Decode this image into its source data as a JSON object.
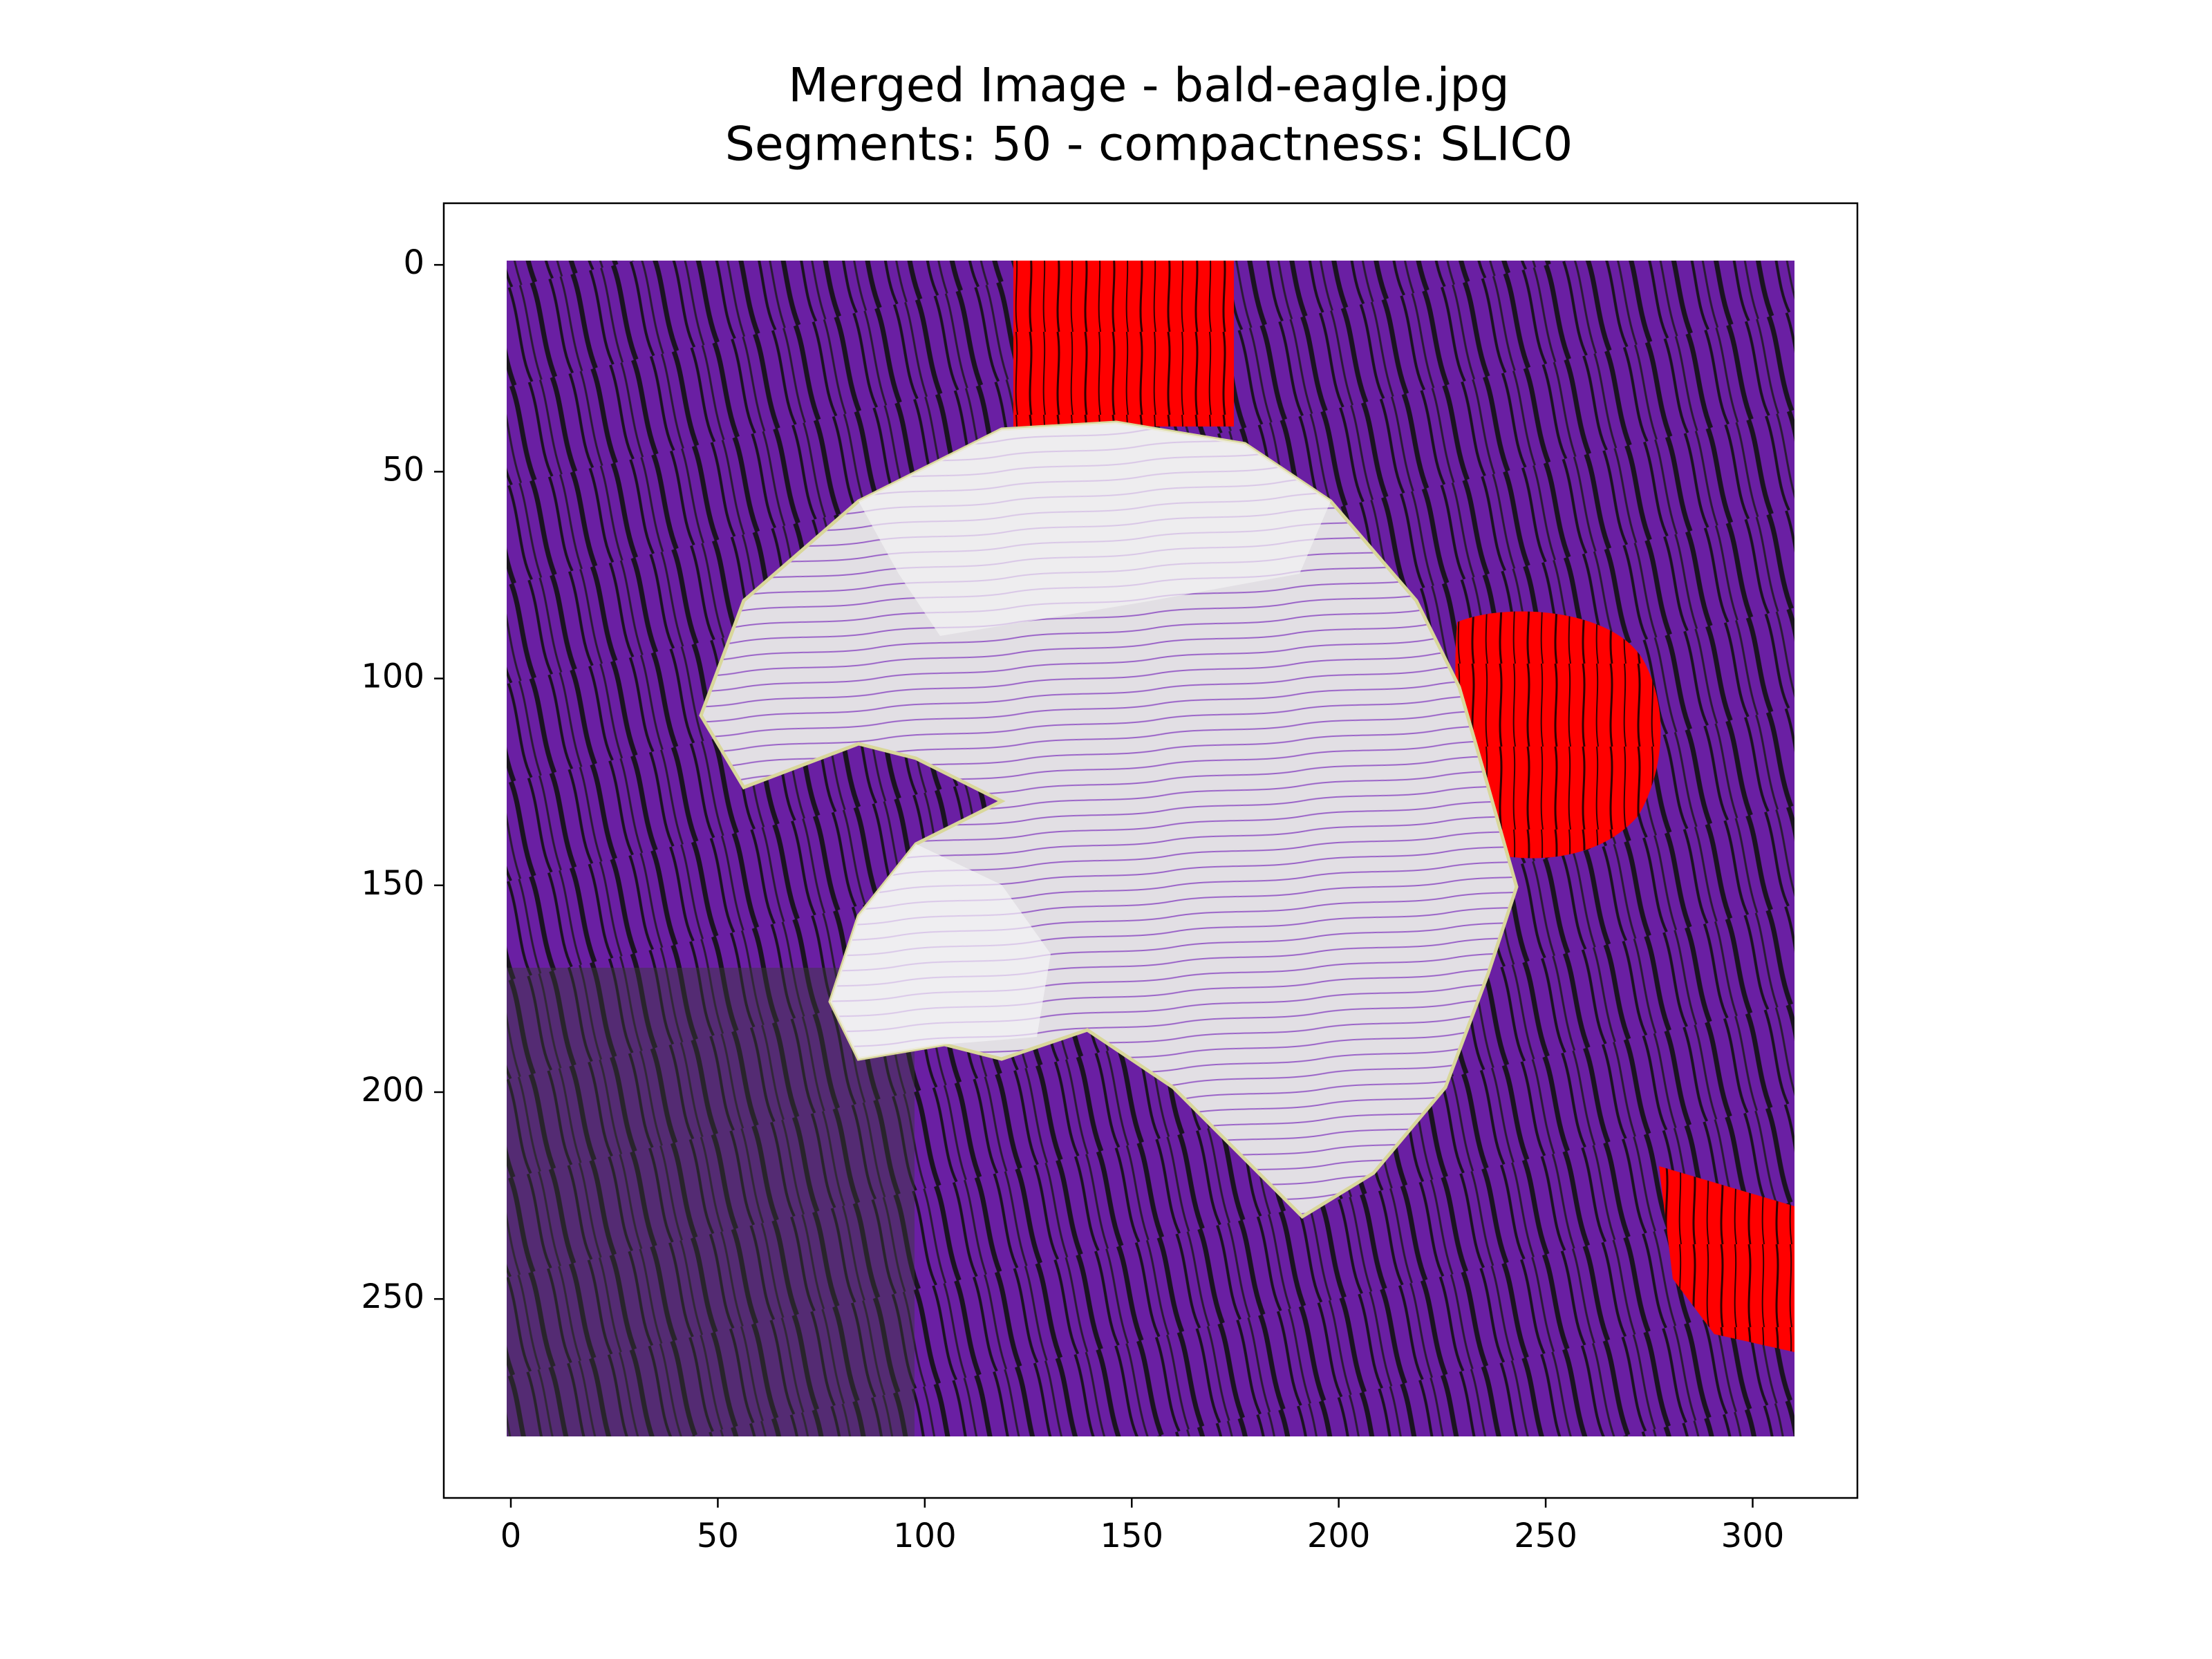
{
  "chart_data": {
    "type": "image",
    "title": "Merged Image - bald-eagle.jpg",
    "subtitle": "Segments: 50 - compactness: SLIC0",
    "xlim": [
      -16.2,
      325.3
    ],
    "xticks": [
      0,
      50,
      100,
      150,
      200,
      250,
      300
    ],
    "ylim": [
      298.1,
      -14.9
    ],
    "yticks": [
      0,
      50,
      100,
      150,
      200,
      250
    ]
  }
}
